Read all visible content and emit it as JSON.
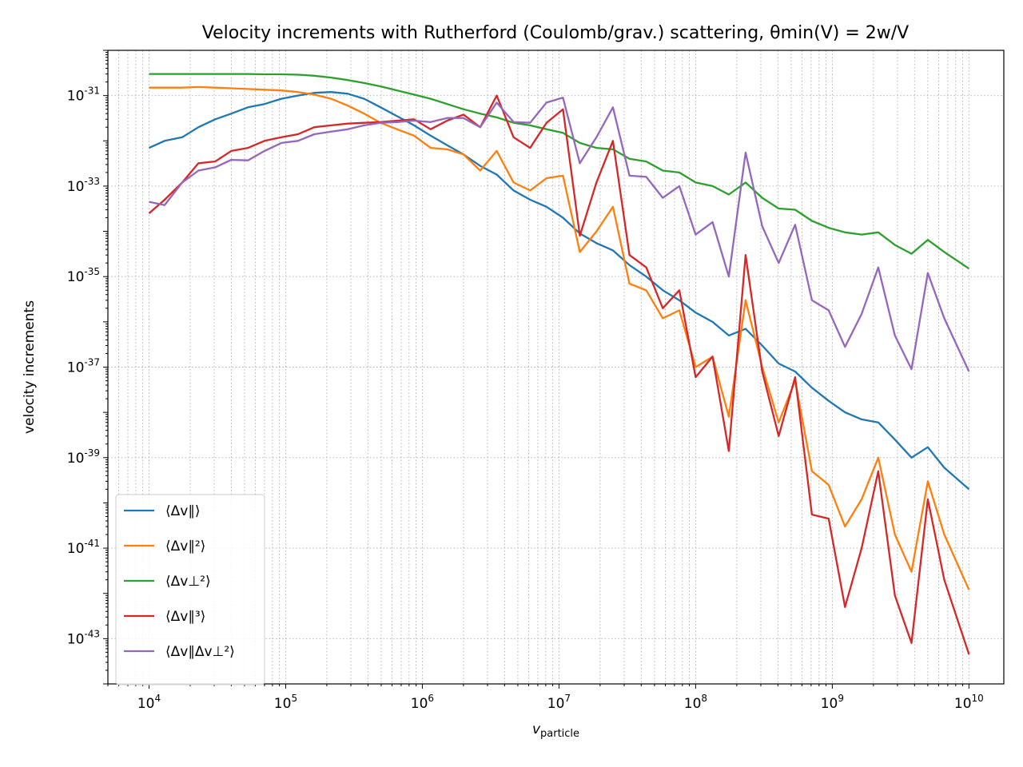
{
  "chart_data": {
    "type": "line",
    "title": "Velocity increments with Rutherford (Coulomb/grav.) scattering, θmin(V) = 2w/V",
    "xlabel": "v_particle",
    "ylabel": "velocity increments",
    "x_scale": "log",
    "y_scale": "log",
    "xlim": [
      5000.0,
      18000000000.0
    ],
    "ylim": [
      1e-44,
      1e-30
    ],
    "grid": true,
    "grid_minor": true,
    "legend_position": "lower-left",
    "x_ticks": [
      10000.0,
      100000.0,
      1000000.0,
      10000000.0,
      100000000.0,
      1000000000.0,
      10000000000.0
    ],
    "x_tick_labels": [
      "10^4",
      "10^5",
      "10^6",
      "10^7",
      "10^8",
      "10^9",
      "10^10"
    ],
    "y_ticks": [
      1e-43,
      1e-41,
      1e-39,
      1e-37,
      1e-35,
      1e-33,
      1e-31
    ],
    "y_tick_labels": [
      "10^-43",
      "10^-41",
      "10^-39",
      "10^-37",
      "10^-35",
      "10^-33",
      "10^-31"
    ],
    "x": [
      10000.0,
      13000.0,
      17500.0,
      23000.0,
      30500.0,
      40000.0,
      53000.0,
      70000.0,
      93000.0,
      123000.0,
      162000.0,
      215000.0,
      285000.0,
      375000.0,
      495000.0,
      655000.0,
      870000.0,
      1150000.0,
      1520000.0,
      2000000.0,
      2650000.0,
      3500000.0,
      4650000.0,
      6150000.0,
      8100000.0,
      10700000.0,
      14200000.0,
      18800000.0,
      24800000.0,
      32800000.0,
      43500000.0,
      57500000.0,
      76000000.0,
      100000000.0,
      133000000.0,
      175000000.0,
      232000000.0,
      307000000.0,
      405000000.0,
      535000000.0,
      710000000.0,
      940000000.0,
      1240000000.0,
      1640000000.0,
      2170000000.0,
      2870000000.0,
      3800000000.0,
      5000000000.0,
      6600000000.0,
      10000000000.0
    ],
    "series": [
      {
        "name": "⟨Δv∥⟩",
        "color": "#1f77b4",
        "values": [
          7e-33,
          1e-32,
          1.2e-32,
          2e-32,
          3e-32,
          4e-32,
          5.5e-32,
          6.5e-32,
          8.5e-32,
          1e-31,
          1.15e-31,
          1.2e-31,
          1.1e-31,
          8.5e-32,
          5.5e-32,
          3.5e-32,
          2.2e-32,
          1.3e-32,
          8e-33,
          5e-33,
          2.8e-33,
          1.8e-33,
          8e-34,
          5e-34,
          3.5e-34,
          2e-34,
          9e-35,
          5.5e-35,
          3.8e-35,
          1.8e-35,
          1e-35,
          5e-36,
          3e-36,
          1.6e-36,
          1e-36,
          5e-37,
          7e-37,
          3e-37,
          1.2e-37,
          8e-38,
          3.5e-38,
          1.8e-38,
          1e-38,
          7e-39,
          6e-39,
          2.5e-39,
          1e-39,
          1.7e-39,
          6e-40,
          2e-40
        ]
      },
      {
        "name": "⟨Δv∥²⟩",
        "color": "#ff7f0e",
        "values": [
          1.5e-31,
          1.5e-31,
          1.5e-31,
          1.55e-31,
          1.5e-31,
          1.45e-31,
          1.4e-31,
          1.35e-31,
          1.3e-31,
          1.2e-31,
          1.05e-31,
          8.5e-32,
          6e-32,
          4e-32,
          2.5e-32,
          1.8e-32,
          1.3e-32,
          7e-33,
          6.5e-33,
          5e-33,
          2.2e-33,
          6e-33,
          1.2e-33,
          8e-34,
          1.5e-33,
          1.7e-33,
          3.5e-35,
          1e-34,
          3.5e-34,
          7e-36,
          5e-36,
          1.2e-36,
          1.8e-36,
          1e-37,
          1.7e-37,
          8e-39,
          3e-36,
          1e-37,
          6e-39,
          5e-38,
          5e-40,
          2.5e-40,
          3e-41,
          1.2e-40,
          1e-39,
          2e-41,
          3e-42,
          3e-40,
          2e-41,
          1.2e-42
        ]
      },
      {
        "name": "⟨Δv⊥²⟩",
        "color": "#2ca02c",
        "values": [
          3e-31,
          3e-31,
          3e-31,
          3e-31,
          3e-31,
          3e-31,
          3e-31,
          2.95e-31,
          2.95e-31,
          2.9e-31,
          2.75e-31,
          2.5e-31,
          2.2e-31,
          1.9e-31,
          1.6e-31,
          1.3e-31,
          1.05e-31,
          8.5e-32,
          6.5e-32,
          5e-32,
          4e-32,
          3.3e-32,
          2.5e-32,
          2.2e-32,
          1.8e-32,
          1.5e-32,
          9e-33,
          7e-33,
          6.5e-33,
          4e-33,
          3.5e-33,
          2.2e-33,
          2e-33,
          1.2e-33,
          1e-33,
          6.5e-34,
          1.2e-33,
          5.5e-34,
          3.2e-34,
          3e-34,
          1.7e-34,
          1.2e-34,
          9.5e-35,
          8.5e-35,
          9.5e-35,
          5e-35,
          3.2e-35,
          6.5e-35,
          3.5e-35,
          1.5e-35
        ]
      },
      {
        "name": "⟨Δv∥³⟩",
        "color": "#d62728",
        "values": [
          2.5e-34,
          5e-34,
          1.2e-33,
          3.2e-33,
          3.5e-33,
          6e-33,
          7e-33,
          1e-32,
          1.2e-32,
          1.4e-32,
          2e-32,
          2.2e-32,
          2.4e-32,
          2.5e-32,
          2.6e-32,
          2.8e-32,
          3e-32,
          1.8e-32,
          2.8e-32,
          3.8e-32,
          2e-32,
          1e-31,
          1.2e-32,
          7e-33,
          2.5e-32,
          5e-32,
          8e-35,
          1.2e-33,
          1e-32,
          3e-35,
          1.6e-35,
          2e-36,
          5e-36,
          6e-38,
          1.7e-37,
          1.4e-39,
          3e-35,
          8e-38,
          3e-39,
          6e-38,
          5.5e-41,
          4.5e-41,
          5e-43,
          1e-41,
          5e-40,
          9e-43,
          8e-44,
          1.2e-40,
          2e-42,
          4.5e-44
        ]
      },
      {
        "name": "⟨Δv∥Δv⊥²⟩",
        "color": "#9467bd",
        "values": [
          4.5e-34,
          3.8e-34,
          1.2e-33,
          2.2e-33,
          2.6e-33,
          3.8e-33,
          3.7e-33,
          6e-33,
          9e-33,
          1e-32,
          1.4e-32,
          1.6e-32,
          1.8e-32,
          2.2e-32,
          2.5e-32,
          2.6e-32,
          2.8e-32,
          2.6e-32,
          3.2e-32,
          3.2e-32,
          2e-32,
          7e-32,
          2.6e-32,
          2.5e-32,
          7e-32,
          9e-32,
          3.2e-33,
          1.2e-32,
          5.5e-32,
          1.7e-33,
          1.6e-33,
          5.5e-34,
          1e-33,
          8.5e-35,
          1.6e-34,
          1e-35,
          5.5e-33,
          1.3e-34,
          2e-35,
          1.4e-34,
          3e-36,
          1.8e-36,
          2.8e-37,
          1.5e-36,
          1.6e-35,
          5e-37,
          9e-38,
          1.2e-35,
          1.2e-36,
          8e-38
        ]
      }
    ]
  }
}
